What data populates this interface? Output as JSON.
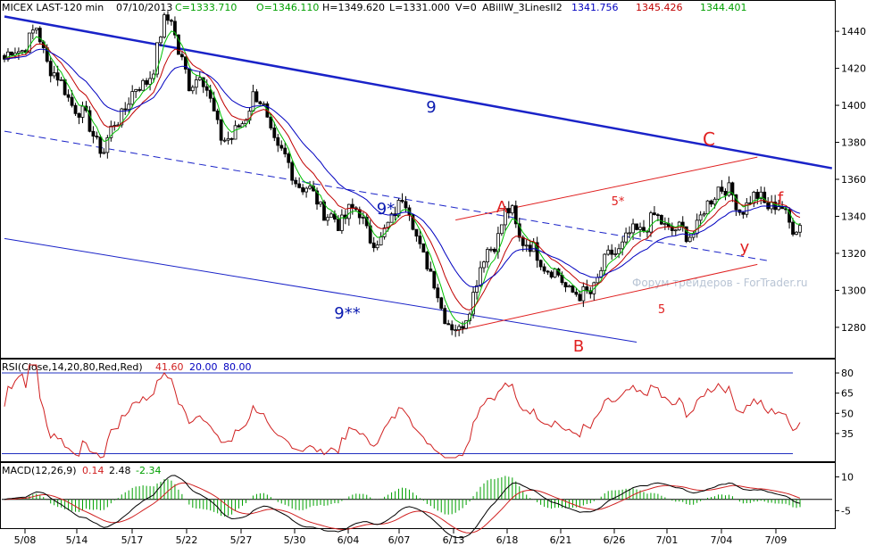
{
  "chart_data": [
    {
      "type": "candlestick",
      "header": {
        "symbol": "MICEX LAST-120 min",
        "date": "07/10/2013",
        "close": "C=1333.710",
        "open": "O=1346.110",
        "high": "H=1349.620",
        "low": "L=1331.000",
        "volume": "V=0",
        "indicator": "ABillW_3LinesII2",
        "ind_values": [
          "1341.756",
          "1345.426",
          "1344.401"
        ]
      },
      "watermark": "Форум трейдеров - ForTrader.ru",
      "yaxis_ticks": [
        1280,
        1300,
        1320,
        1340,
        1360,
        1380,
        1400,
        1420,
        1440
      ],
      "ylim": [
        1265,
        1455
      ],
      "xaxis_ticks": [
        "5/08",
        "5/14",
        "5/17",
        "5/22",
        "5/27",
        "5/30",
        "6/04",
        "6/07",
        "6/13",
        "6/18",
        "6/21",
        "6/26",
        "7/01",
        "7/04",
        "7/09"
      ],
      "price_path": [
        [
          0,
          1425
        ],
        [
          5,
          1432
        ],
        [
          9,
          1440
        ],
        [
          12,
          1425
        ],
        [
          16,
          1410
        ],
        [
          20,
          1400
        ],
        [
          25,
          1385
        ],
        [
          28,
          1375
        ],
        [
          31,
          1390
        ],
        [
          34,
          1400
        ],
        [
          38,
          1410
        ],
        [
          42,
          1420
        ],
        [
          45,
          1445
        ],
        [
          47,
          1450
        ],
        [
          49,
          1428
        ],
        [
          52,
          1410
        ],
        [
          55,
          1420
        ],
        [
          58,
          1400
        ],
        [
          61,
          1385
        ],
        [
          64,
          1380
        ],
        [
          67,
          1392
        ],
        [
          70,
          1405
        ],
        [
          73,
          1398
        ],
        [
          77,
          1375
        ],
        [
          80,
          1368
        ],
        [
          84,
          1355
        ],
        [
          88,
          1350
        ],
        [
          91,
          1340
        ],
        [
          94,
          1335
        ],
        [
          97,
          1345
        ],
        [
          100,
          1340
        ],
        [
          103,
          1330
        ],
        [
          106,
          1325
        ],
        [
          108,
          1335
        ],
        [
          110,
          1345
        ],
        [
          112,
          1350
        ],
        [
          114,
          1342
        ],
        [
          117,
          1325
        ],
        [
          120,
          1308
        ],
        [
          123,
          1292
        ],
        [
          126,
          1280
        ],
        [
          128,
          1276
        ],
        [
          130,
          1288
        ],
        [
          133,
          1305
        ],
        [
          136,
          1322
        ],
        [
          139,
          1330
        ],
        [
          141,
          1340
        ],
        [
          143,
          1342
        ],
        [
          145,
          1330
        ],
        [
          148,
          1322
        ],
        [
          151,
          1318
        ],
        [
          154,
          1310
        ],
        [
          157,
          1305
        ],
        [
          160,
          1300
        ],
        [
          162,
          1295
        ],
        [
          165,
          1300
        ],
        [
          168,
          1310
        ],
        [
          171,
          1320
        ],
        [
          174,
          1325
        ],
        [
          177,
          1330
        ],
        [
          180,
          1335
        ],
        [
          183,
          1338
        ],
        [
          186,
          1336
        ],
        [
          189,
          1332
        ],
        [
          192,
          1330
        ],
        [
          195,
          1335
        ],
        [
          198,
          1345
        ],
        [
          201,
          1358
        ],
        [
          204,
          1352
        ],
        [
          207,
          1345
        ],
        [
          210,
          1348
        ],
        [
          213,
          1350
        ],
        [
          216,
          1346
        ],
        [
          219,
          1343
        ],
        [
          222,
          1336
        ],
        [
          224,
          1334
        ]
      ],
      "annotations": [
        {
          "text": "9",
          "color": "#0a1ab0"
        },
        {
          "text": "C",
          "color": "#e02020"
        },
        {
          "text": "9*",
          "color": "#0a1ab0"
        },
        {
          "text": "A",
          "color": "#e02020"
        },
        {
          "text": "5*",
          "color": "#e02020"
        },
        {
          "text": "f",
          "color": "#e02020"
        },
        {
          "text": "y",
          "color": "#e02020"
        },
        {
          "text": "5",
          "color": "#e02020"
        },
        {
          "text": "9**",
          "color": "#0a1ab0"
        },
        {
          "text": "B",
          "color": "#e02020"
        }
      ],
      "colors": {
        "blue_line": "#1a23c8",
        "red_line": "#e02020",
        "ma_green": "#00c000",
        "ma_red": "#c00000",
        "ma_blue": "#0000c0"
      }
    },
    {
      "type": "line",
      "name": "RSI",
      "label": "RSI(Close,14,20,80,Red,Red)",
      "values_text": [
        "41.60",
        "20.00",
        "80.00"
      ],
      "levels": [
        20,
        80
      ],
      "yaxis_ticks": [
        35,
        50,
        65,
        80
      ],
      "ylim": [
        15,
        88
      ],
      "color": "#d02020"
    },
    {
      "type": "line",
      "name": "MACD",
      "label": "MACD(12,26,9)",
      "values_text": [
        "0.14",
        "2.48",
        "-2.34"
      ],
      "yaxis_ticks": [
        10,
        -5
      ],
      "ylim": [
        -12,
        15
      ],
      "colors": {
        "macd": "#000000",
        "signal": "#d02020",
        "hist": "#00a000"
      }
    }
  ]
}
